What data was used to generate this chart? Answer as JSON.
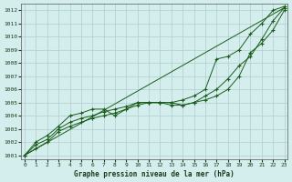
{
  "title": "Graphe pression niveau de la mer (hPa)",
  "bg_color": "#d4eeee",
  "grid_color": "#b0cccc",
  "line_color": "#1a5c1a",
  "xlim": [
    -0.3,
    23.3
  ],
  "ylim": [
    1000.7,
    1012.5
  ],
  "yticks": [
    1001,
    1002,
    1003,
    1004,
    1005,
    1006,
    1007,
    1008,
    1009,
    1010,
    1011,
    1012
  ],
  "xticks": [
    0,
    1,
    2,
    3,
    4,
    5,
    6,
    7,
    8,
    9,
    10,
    11,
    12,
    13,
    14,
    15,
    16,
    17,
    18,
    19,
    20,
    21,
    22,
    23
  ],
  "series": [
    {
      "x": [
        0,
        1,
        2,
        3,
        4,
        5,
        6,
        7,
        8,
        9,
        10,
        11,
        12,
        13,
        14,
        15,
        16,
        17,
        18,
        19,
        20,
        21,
        22,
        23
      ],
      "y": [
        1001.0,
        1001.5,
        1002.0,
        1002.8,
        1003.2,
        1003.5,
        1003.8,
        1004.0,
        1004.2,
        1004.5,
        1004.8,
        1005.0,
        1005.0,
        1005.0,
        1004.8,
        1005.0,
        1005.2,
        1005.5,
        1006.0,
        1007.0,
        1008.8,
        1009.5,
        1010.5,
        1012.0
      ],
      "marker": true
    },
    {
      "x": [
        0,
        1,
        2,
        3,
        4,
        5,
        6,
        7,
        8,
        9,
        10,
        11,
        12,
        13,
        14,
        15,
        16,
        17,
        18,
        19,
        20,
        21,
        22,
        23
      ],
      "y": [
        1001.0,
        1001.8,
        1002.2,
        1003.0,
        1003.5,
        1003.8,
        1004.0,
        1004.3,
        1004.5,
        1004.7,
        1005.0,
        1005.0,
        1005.0,
        1004.8,
        1004.8,
        1005.0,
        1005.5,
        1006.0,
        1006.8,
        1007.8,
        1008.5,
        1009.8,
        1011.2,
        1012.2
      ],
      "marker": true
    },
    {
      "x": [
        0,
        1,
        2,
        3,
        4,
        5,
        6,
        7,
        8,
        9,
        10,
        11,
        12,
        13,
        14,
        15,
        16,
        17,
        18,
        19,
        20,
        21,
        22,
        23
      ],
      "y": [
        1001.0,
        1002.0,
        1002.5,
        1003.2,
        1004.0,
        1004.2,
        1004.5,
        1004.5,
        1004.0,
        1004.5,
        1005.0,
        1005.0,
        1005.0,
        1005.0,
        1005.2,
        1005.5,
        1006.0,
        1008.3,
        1008.5,
        1009.0,
        1010.2,
        1011.0,
        1012.0,
        1012.3
      ],
      "marker": true
    },
    {
      "x": [
        0,
        23
      ],
      "y": [
        1001.0,
        1012.2
      ],
      "marker": false
    }
  ]
}
